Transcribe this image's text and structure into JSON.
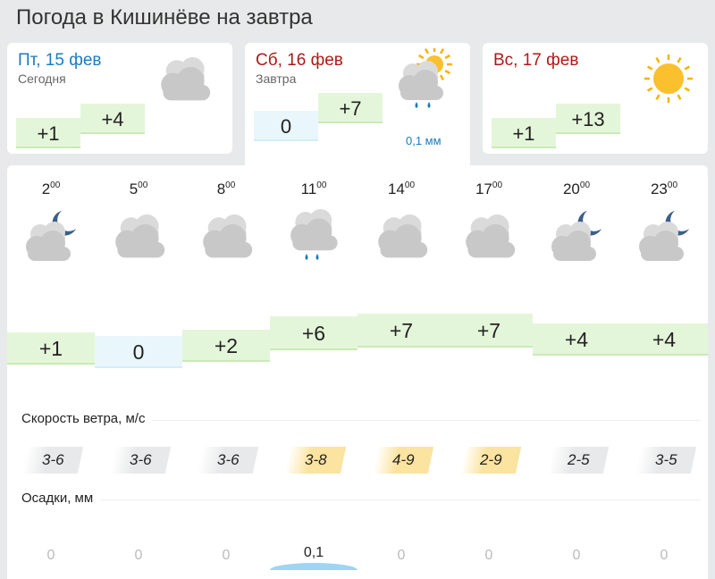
{
  "title": "Погода в Кишинёве на завтра",
  "days": [
    {
      "date": "Пт, 15 фев",
      "sub": "Сегодня",
      "min": "+1",
      "max": "+4",
      "min_style": "green",
      "icon": "cloudy-icon",
      "date_color": "#1a7cc1"
    },
    {
      "date": "Сб, 16 фев",
      "sub": "Завтра",
      "min": "0",
      "max": "+7",
      "min_style": "blue",
      "icon": "partly-sunny-rain-icon",
      "precip": "0,1 мм",
      "date_color": "#b01818"
    },
    {
      "date": "Вс, 17 фев",
      "sub": "",
      "min": "+1",
      "max": "+13",
      "min_style": "green",
      "icon": "sun-icon",
      "date_color": "#b01818"
    }
  ],
  "hours": [
    {
      "h": "2",
      "m": "00",
      "icon": "night-cloudy-icon",
      "temp": "+1",
      "t": 1,
      "wind": "3-6",
      "wind_hi": false,
      "prec": "0",
      "p": 0
    },
    {
      "h": "5",
      "m": "00",
      "icon": "cloudy-icon",
      "temp": "0",
      "t": 0,
      "wind": "3-6",
      "wind_hi": false,
      "prec": "0",
      "p": 0
    },
    {
      "h": "8",
      "m": "00",
      "icon": "cloudy-icon",
      "temp": "+2",
      "t": 2,
      "wind": "3-6",
      "wind_hi": false,
      "prec": "0",
      "p": 0
    },
    {
      "h": "11",
      "m": "00",
      "icon": "cloudy-rain-icon",
      "temp": "+6",
      "t": 6,
      "wind": "3-8",
      "wind_hi": true,
      "prec": "0,1",
      "p": 0.1
    },
    {
      "h": "14",
      "m": "00",
      "icon": "cloudy-icon",
      "temp": "+7",
      "t": 7,
      "wind": "4-9",
      "wind_hi": true,
      "prec": "0",
      "p": 0
    },
    {
      "h": "17",
      "m": "00",
      "icon": "cloudy-icon",
      "temp": "+7",
      "t": 7,
      "wind": "2-9",
      "wind_hi": true,
      "prec": "0",
      "p": 0
    },
    {
      "h": "20",
      "m": "00",
      "icon": "night-cloudy-icon",
      "temp": "+4",
      "t": 4,
      "wind": "2-5",
      "wind_hi": false,
      "prec": "0",
      "p": 0
    },
    {
      "h": "23",
      "m": "00",
      "icon": "night-cloudy-icon",
      "temp": "+4",
      "t": 4,
      "wind": "3-5",
      "wind_hi": false,
      "prec": "0",
      "p": 0
    }
  ],
  "wind_label": "Скорость ветра, м/с",
  "precip_label": "Осадки, мм"
}
